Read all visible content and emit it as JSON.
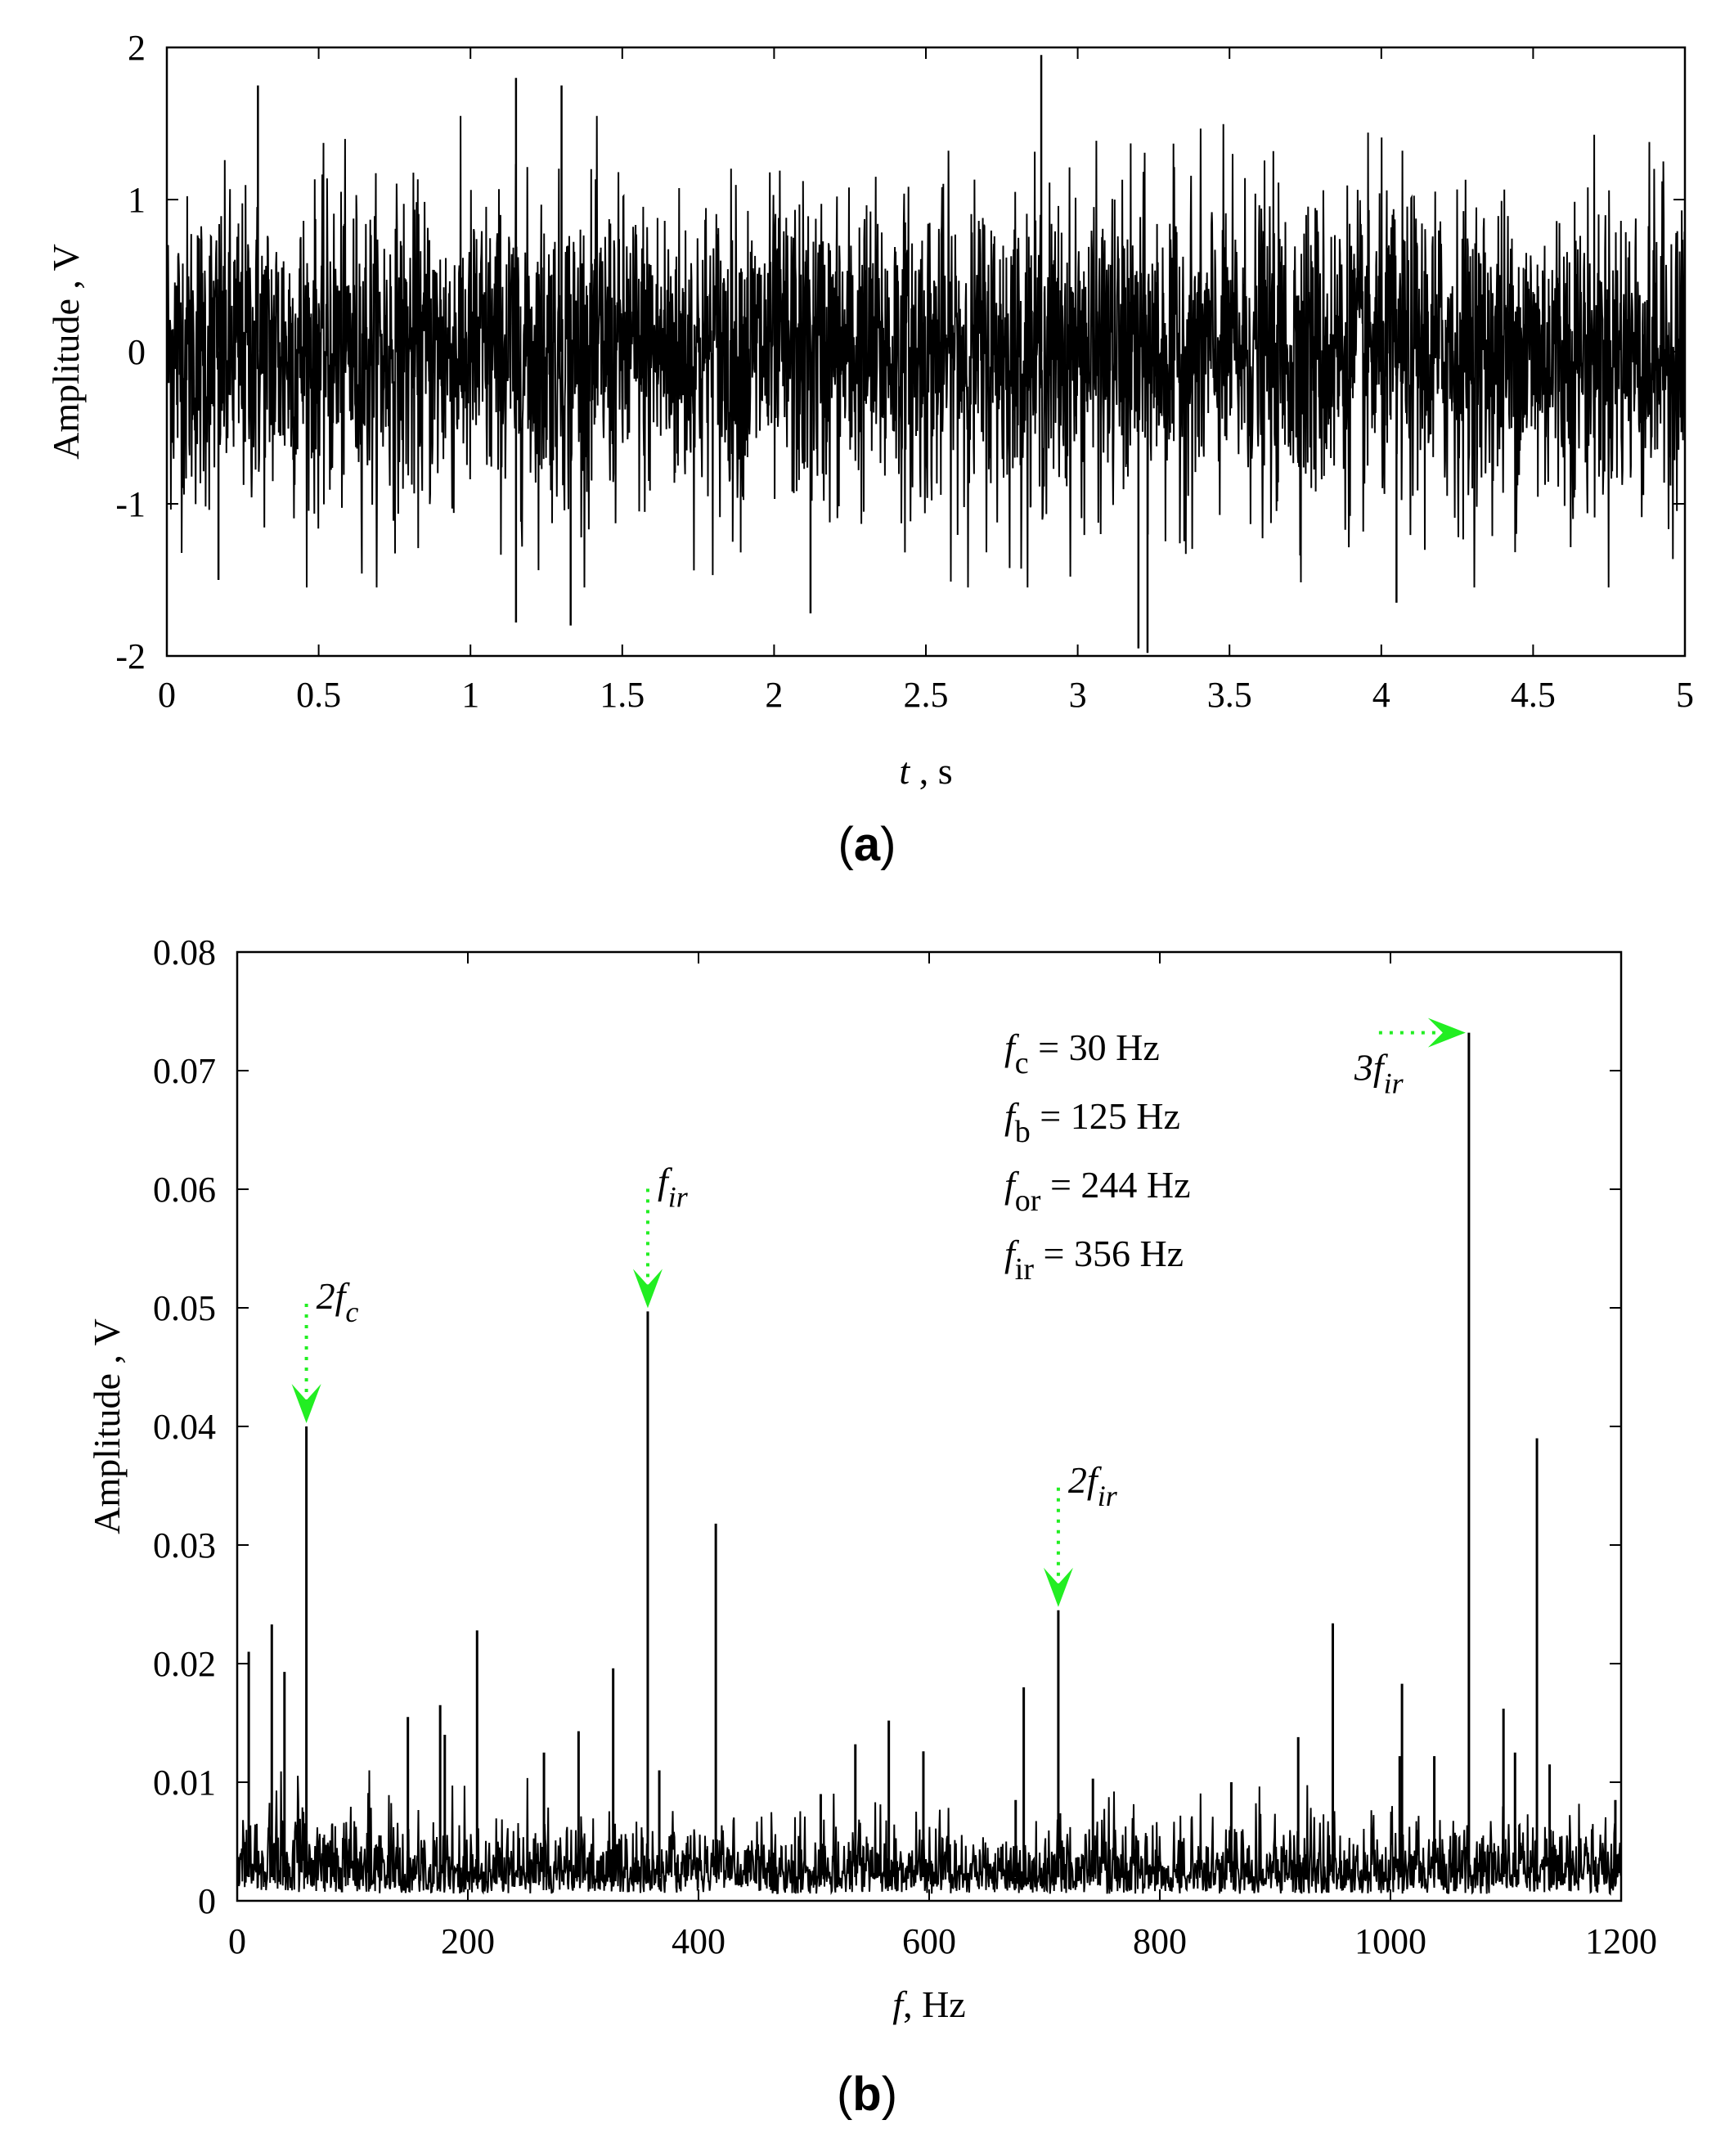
{
  "chart_data": [
    {
      "type": "line",
      "panel": "(a)",
      "panel_letter": "a",
      "xlabel_var": "t",
      "xlabel_unit": " , s",
      "ylabel": "Amplitude , V",
      "xlim": [
        0,
        5
      ],
      "ylim": [
        -2,
        2
      ],
      "xticks": [
        "0",
        "0.5",
        "1",
        "1.5",
        "2",
        "2.5",
        "3",
        "3.5",
        "4",
        "4.5",
        "5"
      ],
      "yticks": [
        "2",
        "1",
        "0",
        "-1",
        "-2"
      ],
      "xtick_values": [
        0,
        0.5,
        1,
        1.5,
        2,
        2.5,
        3,
        3.5,
        4,
        4.5,
        5
      ],
      "ytick_values": [
        2,
        1,
        0,
        -1,
        -2
      ],
      "grid": false,
      "color": "#000000",
      "signal": {
        "description_values": "broadband vibration signal, mostly within about -1.3 to 1.3 V",
        "typical_envelope": 1.2,
        "peaks": [
          {
            "x": 0.3,
            "y": 1.75
          },
          {
            "x": 1.15,
            "y": 1.8
          },
          {
            "x": 1.3,
            "y": 1.75
          },
          {
            "x": 2.88,
            "y": 1.95
          },
          {
            "x": 0.17,
            "y": -1.5
          },
          {
            "x": 1.15,
            "y": -1.78
          },
          {
            "x": 1.33,
            "y": -1.8
          },
          {
            "x": 2.12,
            "y": -1.72
          },
          {
            "x": 3.2,
            "y": -1.95
          },
          {
            "x": 3.23,
            "y": -1.98
          },
          {
            "x": 4.05,
            "y": -1.65
          }
        ]
      }
    },
    {
      "type": "line",
      "panel": "(b)",
      "panel_letter": "b",
      "xlabel_var": "f",
      "xlabel_unit": ", Hz",
      "ylabel": "Amplitude , V",
      "xlim": [
        0,
        1200
      ],
      "ylim": [
        0,
        0.08
      ],
      "xticks": [
        "0",
        "200",
        "400",
        "600",
        "800",
        "1000",
        "1200"
      ],
      "yticks": [
        "0.08",
        "0.07",
        "0.06",
        "0.05",
        "0.04",
        "0.03",
        "0.02",
        "0.01",
        "0"
      ],
      "xtick_values": [
        0,
        200,
        400,
        600,
        800,
        1000,
        1200
      ],
      "ytick_values": [
        0.08,
        0.07,
        0.06,
        0.05,
        0.04,
        0.03,
        0.02,
        0.01,
        0
      ],
      "grid": false,
      "color": "#000000",
      "spikes": [
        {
          "x": 10,
          "y": 0.021
        },
        {
          "x": 30,
          "y": 0.0233
        },
        {
          "x": 41,
          "y": 0.0193
        },
        {
          "x": 60,
          "y": 0.04
        },
        {
          "x": 148,
          "y": 0.0155
        },
        {
          "x": 176,
          "y": 0.0165
        },
        {
          "x": 180,
          "y": 0.014
        },
        {
          "x": 208,
          "y": 0.0228
        },
        {
          "x": 266,
          "y": 0.0125
        },
        {
          "x": 296,
          "y": 0.0143
        },
        {
          "x": 326,
          "y": 0.0196
        },
        {
          "x": 356,
          "y": 0.0497
        },
        {
          "x": 366,
          "y": 0.011
        },
        {
          "x": 415,
          "y": 0.0318
        },
        {
          "x": 506,
          "y": 0.009
        },
        {
          "x": 536,
          "y": 0.0132
        },
        {
          "x": 565,
          "y": 0.0152
        },
        {
          "x": 595,
          "y": 0.0126
        },
        {
          "x": 675,
          "y": 0.0085
        },
        {
          "x": 682,
          "y": 0.018
        },
        {
          "x": 712,
          "y": 0.0245
        },
        {
          "x": 742,
          "y": 0.0103
        },
        {
          "x": 862,
          "y": 0.01
        },
        {
          "x": 920,
          "y": 0.0138
        },
        {
          "x": 950,
          "y": 0.0234
        },
        {
          "x": 1008,
          "y": 0.0122
        },
        {
          "x": 1010,
          "y": 0.0183
        },
        {
          "x": 1038,
          "y": 0.0122
        },
        {
          "x": 1068,
          "y": 0.0732
        },
        {
          "x": 1098,
          "y": 0.0162
        },
        {
          "x": 1108,
          "y": 0.0125
        },
        {
          "x": 1127,
          "y": 0.039
        },
        {
          "x": 1138,
          "y": 0.0115
        },
        {
          "x": 1195,
          "y": 0.0085
        }
      ],
      "noise_floor": 0.003,
      "annotations": [
        {
          "base": "2f",
          "sub": "c",
          "x": 60,
          "y": 0.04,
          "direction": "down"
        },
        {
          "base": "f",
          "sub": "ir",
          "x": 356,
          "y": 0.0497,
          "direction": "down"
        },
        {
          "base": "2f",
          "sub": "ir",
          "x": 712,
          "y": 0.0245,
          "direction": "down"
        },
        {
          "base": "3f",
          "sub": "ir",
          "x": 1068,
          "y": 0.0732,
          "direction": "right"
        }
      ],
      "annotation_color": "#22ee22",
      "legend": [
        {
          "var": "f",
          "sub": "c",
          "text": " = 30 Hz"
        },
        {
          "var": "f",
          "sub": "b",
          "text": " = 125 Hz"
        },
        {
          "var": "f",
          "sub": "or",
          "text": " = 244 Hz"
        },
        {
          "var": "f",
          "sub": "ir",
          "text": "  = 356 Hz"
        }
      ],
      "legend_placement": "top-center"
    }
  ]
}
